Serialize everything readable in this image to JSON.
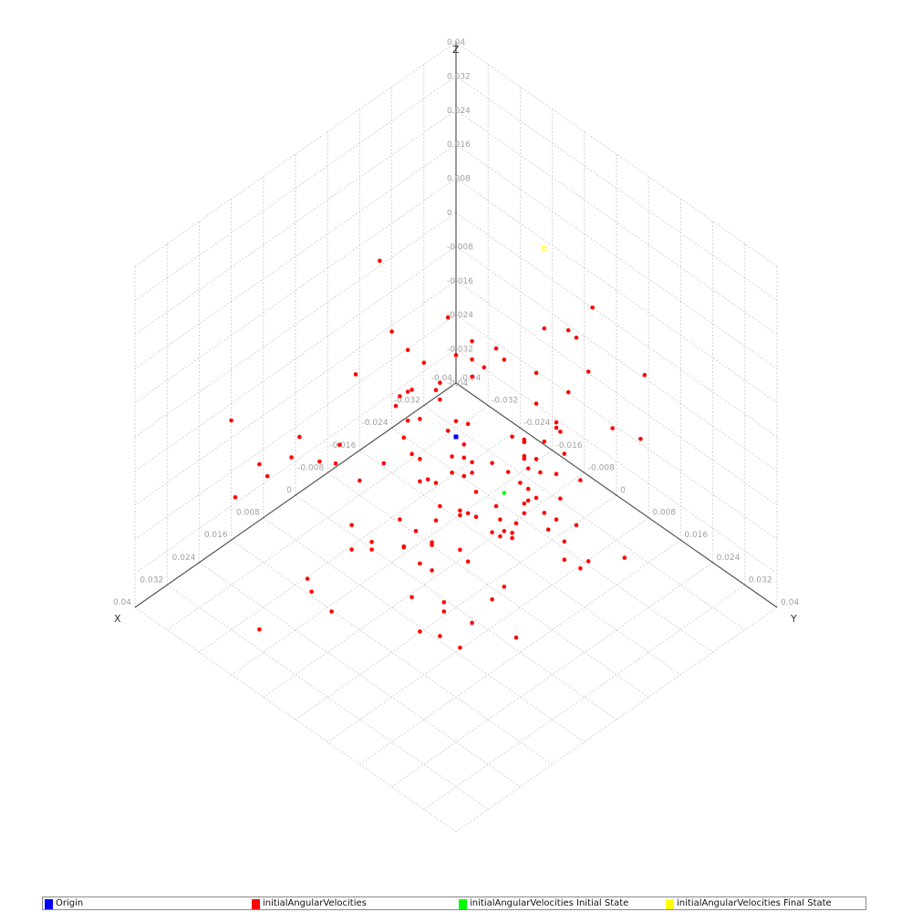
{
  "chart_data": {
    "type": "scatter",
    "projection": "3d-isometric",
    "axes": {
      "x": {
        "label": "X",
        "range": [
          -0.04,
          0.04
        ],
        "ticks": [
          "-0.04",
          "-0.032",
          "-0.024",
          "-0.016",
          "-0.008",
          "0",
          "0.008",
          "0.016",
          "0.024",
          "0.032",
          "0.04"
        ]
      },
      "y": {
        "label": "Y",
        "range": [
          -0.04,
          0.04
        ],
        "ticks": [
          "-0.04",
          "-0.032",
          "-0.024",
          "-0.016",
          "-0.008",
          "0",
          "0.008",
          "0.016",
          "0.024",
          "0.032",
          "0.04"
        ]
      },
      "z": {
        "label": "Z",
        "range": [
          -0.04,
          0.04
        ],
        "ticks": [
          "-0.04",
          "-0.032",
          "-0.024",
          "-0.016",
          "-0.008",
          "0",
          "0.008",
          "0.016",
          "0.024",
          "0.032",
          "0.04"
        ]
      }
    },
    "grid": true,
    "legend_position": "bottom",
    "series": [
      {
        "name": "Origin",
        "color": "#0000ff",
        "marker": "square",
        "points": [
          [
            0,
            0,
            0
          ]
        ]
      },
      {
        "name": "initialAngularVelocities",
        "color": "#ff0000",
        "marker": "circle",
        "points": [
          [
            0.006,
            -0.002,
            0.02
          ],
          [
            0.011,
            0.016,
            -0.001
          ],
          [
            -0.006,
            0.022,
            0.021
          ],
          [
            0.001,
            -0.001,
            0.028
          ],
          [
            0.036,
            -0.019,
            -0.003
          ],
          [
            -0.01,
            0.01,
            0.015
          ],
          [
            0.014,
            0.029,
            0.008
          ],
          [
            -0.014,
            0.014,
            0.025
          ],
          [
            0.016,
            0.033,
            0.031
          ],
          [
            0.031,
            0.032,
            -0.008
          ],
          [
            0.019,
            0.022,
            0.03
          ],
          [
            -0.019,
            0.011,
            0.018
          ],
          [
            -0.02,
            0.006,
            -0.008
          ],
          [
            0.001,
            0.015,
            -0.012
          ],
          [
            0.029,
            -0.018,
            -0.002
          ],
          [
            0.02,
            0.008,
            0.029
          ],
          [
            0.001,
            0.001,
            0.005
          ],
          [
            -0.003,
            0.017,
            0.017
          ],
          [
            0.001,
            -0.004,
            0.009
          ],
          [
            0.037,
            -0.012,
            0.01
          ],
          [
            0.006,
            0.002,
            0.014
          ],
          [
            0.006,
            0.002,
            -0.011
          ],
          [
            -0.016,
            0.001,
            -0.015
          ],
          [
            0.022,
            0.025,
            0.013
          ],
          [
            0.018,
            0.004,
            0.024
          ],
          [
            0.008,
            0.022,
            -0.004
          ],
          [
            -0.004,
            0.038,
            -0.006
          ],
          [
            0.036,
            0.032,
            -0.002
          ],
          [
            0.011,
            0.028,
            0.025
          ],
          [
            0.009,
            0.009,
            0.031
          ],
          [
            0.038,
            -0.018,
            0.017
          ],
          [
            0.036,
            0.027,
            0.031
          ],
          [
            0.009,
            0.01,
            -0.014
          ],
          [
            0.002,
            0.025,
            -0.004
          ],
          [
            0.016,
            -0.002,
            0.003
          ],
          [
            -0.018,
            0.016,
            0.029
          ],
          [
            0.013,
            0.024,
            0.001
          ],
          [
            -0.008,
            0.025,
            -0.018
          ],
          [
            0.037,
            -0.002,
            0.023
          ],
          [
            0.024,
            0.015,
            -0.02
          ],
          [
            0.012,
            -0.014,
            -0.022
          ],
          [
            0.004,
            -0.002,
            -0.03
          ],
          [
            -0.018,
            0.021,
            0.004
          ],
          [
            0.001,
            0.018,
            0.008
          ],
          [
            0.021,
            -0.016,
            -0.03
          ],
          [
            0.012,
            -0.013,
            0.014
          ],
          [
            0.004,
            0.008,
            0.022
          ],
          [
            0.02,
            0.014,
            -0.003
          ],
          [
            0.016,
            0.036,
            0.029
          ],
          [
            0.031,
            0.035,
            0.035
          ],
          [
            0.019,
            0.023,
            -0.016
          ],
          [
            0.008,
            0.029,
            0.016
          ],
          [
            0.004,
            0.007,
            -0.022
          ],
          [
            0.003,
            0.028,
            0.001
          ],
          [
            -0.003,
            -0.004,
            -0.013
          ],
          [
            0.005,
            0.023,
            0.011
          ],
          [
            -0.021,
            0.005,
            -0.025
          ],
          [
            0.025,
            0.02,
            0.01
          ],
          [
            -0.02,
            -0.01,
            0.001
          ],
          [
            0.024,
            0.026,
            0.028
          ],
          [
            0.011,
            -0.01,
            -0.024
          ],
          [
            0.034,
            0.021,
            0.036
          ],
          [
            -0.006,
            0.016,
            0.032
          ],
          [
            0.024,
            0.01,
            0.003
          ],
          [
            0.018,
            0.028,
            0.014
          ],
          [
            0.029,
            -0.005,
            0.01
          ],
          [
            0.038,
            0.008,
            0.024
          ],
          [
            0.013,
            0.001,
            0.013
          ],
          [
            0.005,
            -0.002,
            -0.008
          ],
          [
            0.026,
            0.015,
            0.038
          ],
          [
            0.022,
            -0.007,
            0.008
          ],
          [
            0.026,
            0.035,
            0.002
          ],
          [
            0.019,
            -0.017,
            -0.035
          ],
          [
            0.007,
            -0.012,
            0.038
          ],
          [
            0.001,
            0.005,
            -0.002
          ],
          [
            0.008,
            -0.004,
            0.023
          ],
          [
            0.021,
            0.022,
            0.011
          ],
          [
            0.027,
            0.001,
            -0.008
          ],
          [
            0.023,
            0.002,
            -0.01
          ],
          [
            0.006,
            0.004,
            0.008
          ],
          [
            0.007,
            0.011,
            0.03
          ],
          [
            0.012,
            0.039,
            0.009
          ],
          [
            -0.003,
            0.024,
            -0.015
          ],
          [
            0.013,
            0.02,
            0.038
          ],
          [
            -0.004,
            0.013,
            -0.012
          ],
          [
            0.013,
            0.031,
            0.014
          ],
          [
            0.011,
            -0.002,
            -0.02
          ],
          [
            0.03,
            0.032,
            0.039
          ],
          [
            0.004,
            0.029,
            0.013
          ],
          [
            0.021,
            0.026,
            0.018
          ],
          [
            -0.005,
            0.02,
            0.012
          ],
          [
            0.017,
            0.035,
            0.022
          ],
          [
            0.0,
            0.012,
            0.026
          ],
          [
            0.018,
            0.012,
            -0.005
          ],
          [
            -0.012,
            0.034,
            0.014
          ],
          [
            0.023,
            0.01,
            -0.004
          ],
          [
            -0.014,
            0.033,
            0.027
          ],
          [
            -0.009,
            0.011,
            -0.013
          ],
          [
            0.007,
            0.019,
            -0.005
          ],
          [
            0.022,
            0.019,
            -0.014
          ],
          [
            0.01,
            0.021,
            0.001
          ],
          [
            -0.007,
            0.024,
            0.001
          ],
          [
            0.004,
            -0.007,
            -0.006
          ],
          [
            0.0,
            0.033,
            0.037
          ],
          [
            -0.021,
            0.001,
            -0.031
          ],
          [
            0.002,
            0.024,
            0.016
          ],
          [
            0.009,
            -0.007,
            0.026
          ],
          [
            0.004,
            0.02,
            0.005
          ],
          [
            0.021,
            0.006,
            0.025
          ],
          [
            0.033,
            -0.016,
            -0.034
          ],
          [
            0.021,
            0.012,
            -0.008
          ],
          [
            0.01,
            0.035,
            0.033
          ],
          [
            0.03,
            0.039,
            0.023
          ],
          [
            0.028,
            0.017,
            -0.008
          ],
          [
            0.013,
            0.004,
            0.006
          ],
          [
            0.004,
            0.016,
            -0.022
          ],
          [
            -0.001,
            0.012,
            -0.001
          ],
          [
            0.003,
            -0.001,
            0.014
          ],
          [
            0.031,
            -0.01,
            0.009
          ],
          [
            0.0,
            0.03,
            -0.001
          ],
          [
            0.031,
            0.028,
            0.0
          ],
          [
            0.037,
            0.027,
            0.02
          ],
          [
            0.013,
            0.008,
            0.003
          ],
          [
            0.007,
            0.022,
            -0.028
          ],
          [
            0.006,
            0.008,
            0.0
          ],
          [
            0.004,
            0.003,
            0.0
          ],
          [
            0.011,
            0.028,
            0.01
          ],
          [
            0.003,
            0.007,
            0.029
          ],
          [
            0.015,
            0.016,
            0.002
          ],
          [
            0.007,
            0.034,
            0.023
          ],
          [
            0.015,
            0.006,
            0.018
          ],
          [
            0.007,
            0.016,
            0.009
          ],
          [
            0.035,
            0.011,
            0.02
          ],
          [
            0.036,
            0.005,
            -0.014
          ],
          [
            -0.004,
            0.01,
            0.004
          ],
          [
            -0.008,
            0.023,
            -0.021
          ]
        ]
      },
      {
        "name": "initialAngularVelocities Initial State",
        "color": "#00ff00",
        "marker": "circle",
        "points": [
          [
            0.004,
            0.016,
            0.0
          ]
        ]
      },
      {
        "name": "initialAngularVelocities Final State",
        "color": "#ffff00",
        "marker": "square",
        "points": [
          [
            -0.018,
            0.004,
            0.035
          ]
        ]
      }
    ]
  }
}
